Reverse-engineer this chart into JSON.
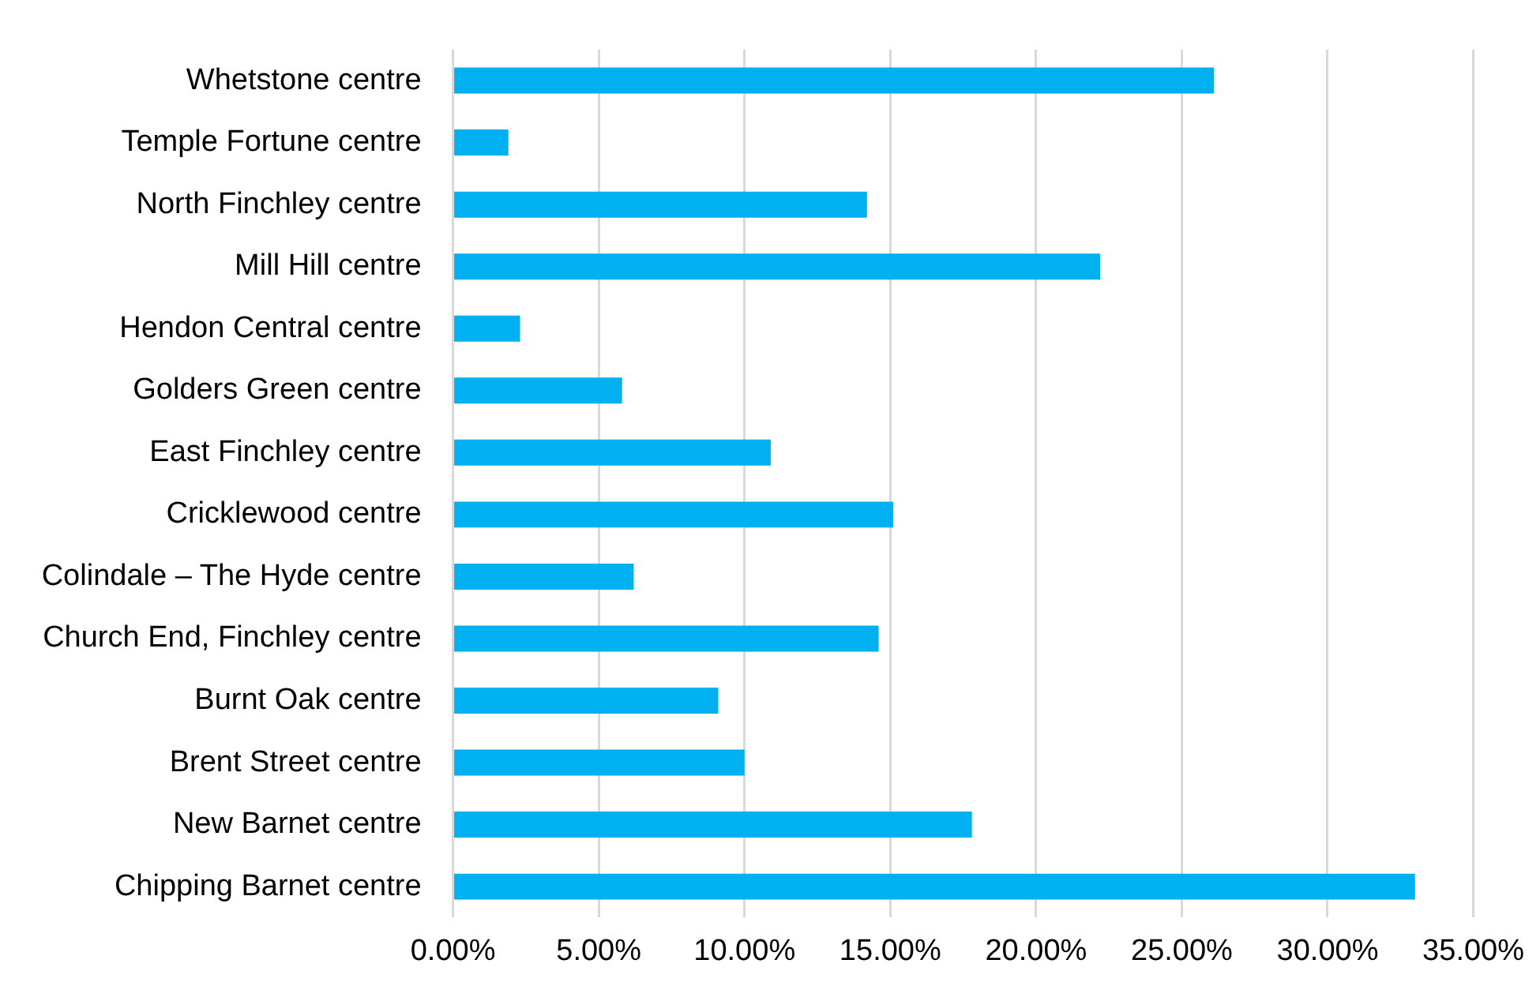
{
  "chart_data": {
    "type": "bar",
    "orientation": "horizontal",
    "categories": [
      "Whetstone centre",
      "Temple Fortune centre",
      "North Finchley centre",
      "Mill Hill centre",
      "Hendon Central centre",
      "Golders Green centre",
      "East Finchley centre",
      "Cricklewood centre",
      "Colindale – The Hyde centre",
      "Church End, Finchley centre",
      "Burnt Oak centre",
      "Brent Street centre",
      "New Barnet centre",
      "Chipping Barnet centre"
    ],
    "values": [
      26.1,
      1.9,
      14.2,
      22.2,
      2.3,
      5.8,
      10.9,
      15.1,
      6.2,
      14.6,
      9.1,
      10.0,
      17.8,
      33.0
    ],
    "color": "#00b0f0",
    "xlim": [
      0,
      35
    ],
    "xticks": [
      {
        "value": 0,
        "label": "0.00%"
      },
      {
        "value": 5,
        "label": "5.00%"
      },
      {
        "value": 10,
        "label": "10.00%"
      },
      {
        "value": 15,
        "label": "15.00%"
      },
      {
        "value": 20,
        "label": "20.00%"
      },
      {
        "value": 25,
        "label": "25.00%"
      },
      {
        "value": 30,
        "label": "30.00%"
      },
      {
        "value": 35,
        "label": "35.00%"
      }
    ],
    "grid": "x",
    "legend": false
  }
}
